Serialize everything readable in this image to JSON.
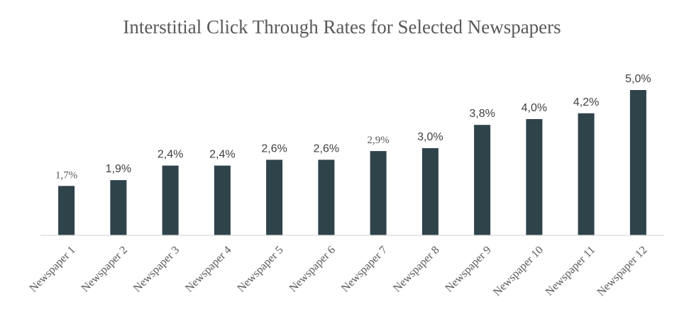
{
  "chart_data": {
    "type": "bar",
    "title": "Interstitial Click Through Rates for Selected Newspapers",
    "xlabel": "",
    "ylabel": "",
    "categories": [
      "Newspaper 1",
      "Newspaper 2",
      "Newspaper 3",
      "Newspaper 4",
      "Newspaper 5",
      "Newspaper 6",
      "Newspaper 7",
      "Newspaper 8",
      "Newspaper 9",
      "Newspaper 10",
      "Newspaper 11",
      "Newspaper 12"
    ],
    "values": [
      1.7,
      1.9,
      2.4,
      2.4,
      2.6,
      2.6,
      2.9,
      3.0,
      3.8,
      4.0,
      4.2,
      5.0
    ],
    "data_labels": [
      "1,7%",
      "1,9%",
      "2,4%",
      "2,4%",
      "2,6%",
      "2,6%",
      "2,9%",
      "3,0%",
      "3,8%",
      "4,0%",
      "4,2%",
      "5,0%"
    ],
    "ylim": [
      0,
      5.0
    ],
    "grid": false,
    "legend": "none",
    "colors": {
      "bar": "#2f434b",
      "axis": "#d9d9d9",
      "title": "#595959",
      "label": "#404040"
    }
  }
}
